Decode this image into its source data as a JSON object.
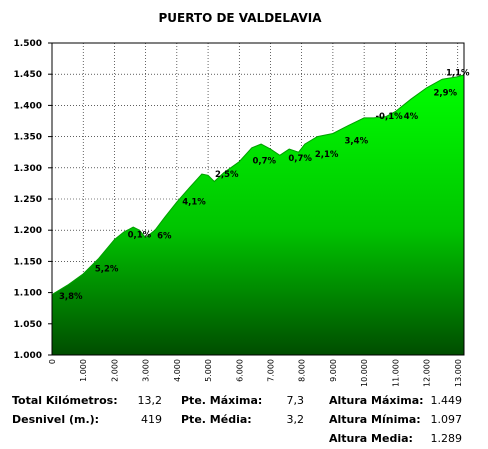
{
  "chart_data": {
    "type": "area",
    "title": "PUERTO DE VALDELAVIA",
    "xlabel": "",
    "ylabel": "",
    "xlim": [
      0,
      13.2
    ],
    "ylim": [
      1000,
      1500
    ],
    "grid": true,
    "y_tick_labels": [
      "1.000",
      "1.050",
      "1.100",
      "1.150",
      "1.200",
      "1.250",
      "1.300",
      "1.350",
      "1.400",
      "1.450",
      "1.500"
    ],
    "y_tick_values": [
      1000,
      1050,
      1100,
      1150,
      1200,
      1250,
      1300,
      1350,
      1400,
      1450,
      1500
    ],
    "x_tick_labels": [
      "0",
      "1.000",
      "2.000",
      "3.000",
      "4.000",
      "5.000",
      "6.000",
      "7.000",
      "8.000",
      "9.000",
      "10.000",
      "11.000",
      "12.000",
      "13.000"
    ],
    "x_tick_values": [
      0,
      1,
      2,
      3,
      4,
      5,
      6,
      7,
      8,
      9,
      10,
      11,
      12,
      13
    ],
    "profile": {
      "x": [
        0,
        0.5,
        1.0,
        1.5,
        2.0,
        2.3,
        2.6,
        2.8,
        3.0,
        3.3,
        3.6,
        4.0,
        4.4,
        4.8,
        5.0,
        5.2,
        5.5,
        6.0,
        6.4,
        6.7,
        7.0,
        7.3,
        7.6,
        7.9,
        8.1,
        8.5,
        9.0,
        9.5,
        10.0,
        10.3,
        10.7,
        11.0,
        11.5,
        12.0,
        12.5,
        13.0,
        13.2
      ],
      "y": [
        1097,
        1112,
        1130,
        1155,
        1185,
        1197,
        1205,
        1200,
        1188,
        1200,
        1220,
        1245,
        1268,
        1290,
        1288,
        1278,
        1292,
        1310,
        1332,
        1338,
        1330,
        1320,
        1330,
        1325,
        1338,
        1350,
        1355,
        1368,
        1380,
        1380,
        1382,
        1390,
        1410,
        1428,
        1442,
        1446,
        1449
      ]
    },
    "segment_labels": [
      {
        "text": "3,8%",
        "x": 0.6,
        "y": 1090
      },
      {
        "text": "5,2%",
        "x": 1.75,
        "y": 1134
      },
      {
        "text": "0,1%",
        "x": 2.8,
        "y": 1188
      },
      {
        "text": "6%",
        "x": 3.6,
        "y": 1187
      },
      {
        "text": "4,1%",
        "x": 4.55,
        "y": 1241
      },
      {
        "text": "2,5%",
        "x": 5.6,
        "y": 1285
      },
      {
        "text": "0,7%",
        "x": 6.8,
        "y": 1307
      },
      {
        "text": "0,7%",
        "x": 7.95,
        "y": 1311
      },
      {
        "text": "2,1%",
        "x": 8.8,
        "y": 1317
      },
      {
        "text": "3,4%",
        "x": 9.75,
        "y": 1339
      },
      {
        "text": "-0,1%",
        "x": 10.8,
        "y": 1378
      },
      {
        "text": "4%",
        "x": 11.5,
        "y": 1378
      },
      {
        "text": "2,9%",
        "x": 12.6,
        "y": 1416
      },
      {
        "text": "1,1%",
        "x": 13.0,
        "y": 1448
      }
    ],
    "colors": {
      "fill_top": "#00ff00",
      "fill_bottom": "#005a00",
      "grid": "#000000",
      "background": "#ffffff"
    }
  },
  "stats": {
    "total_km_label": "Total Kilómetros:",
    "total_km_value": "13,2",
    "desnivel_label": "Desnivel (m.):",
    "desnivel_value": "419",
    "pte_max_label": "Pte. Máxima:",
    "pte_max_value": "7,3",
    "pte_media_label": "Pte. Média:",
    "pte_media_value": "3,2",
    "alt_max_label": "Altura Máxima:",
    "alt_max_value": "1.449",
    "alt_min_label": "Altura Mínima:",
    "alt_min_value": "1.097",
    "alt_media_label": "Altura Media:",
    "alt_media_value": "1.289"
  }
}
